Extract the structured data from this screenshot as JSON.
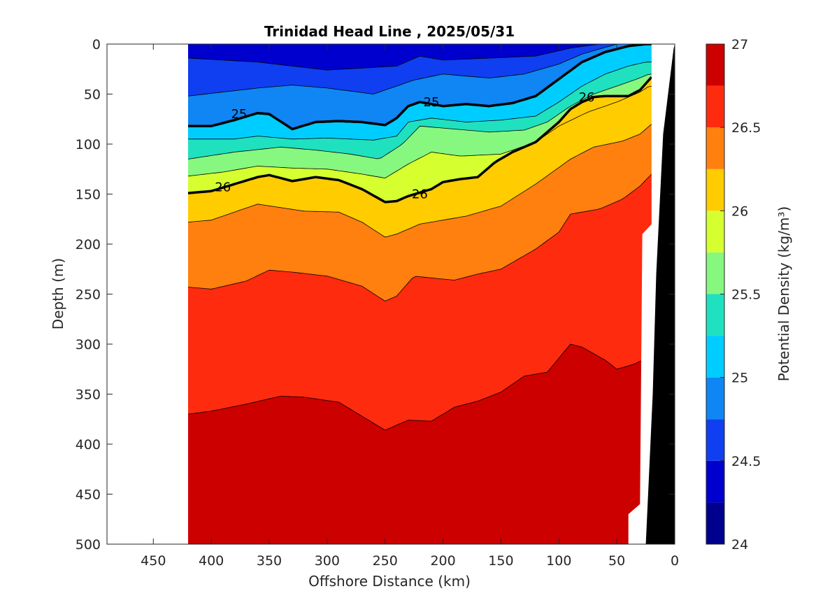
{
  "chart_data": {
    "type": "contour",
    "title": "Trinidad Head Line , 2025/05/31",
    "xlabel": "Offshore Distance (km)",
    "ylabel": "Depth (m)",
    "colorbar_label": "Potential Density (kg/m³)",
    "xlim": [
      490,
      0
    ],
    "ylim": [
      500,
      0
    ],
    "xticks": [
      450,
      400,
      350,
      300,
      250,
      200,
      150,
      100,
      50,
      0
    ],
    "yticks": [
      0,
      50,
      100,
      150,
      200,
      250,
      300,
      350,
      400,
      450,
      500
    ],
    "colorbar": {
      "range": [
        24,
        27
      ],
      "ticks": [
        27,
        26.5,
        26,
        25.5,
        25,
        24.5,
        24
      ],
      "tick_labels": [
        "27",
        "26.5",
        "26",
        "25.5",
        "25",
        "24.5",
        "24"
      ],
      "levels": [
        24,
        24.25,
        24.5,
        24.75,
        25,
        25.25,
        25.5,
        25.75,
        26,
        26.25,
        26.5,
        26.75,
        27
      ],
      "colors": [
        "#00008f",
        "#0000ce",
        "#0f3ff0",
        "#0f86f3",
        "#00cdff",
        "#1fe1c0",
        "#86f77f",
        "#d6ff2f",
        "#ffcc00",
        "#ff7f0f",
        "#ff2b0f",
        "#cd0000"
      ]
    },
    "data_extent_km": [
      420,
      20
    ],
    "isopycnals": [
      {
        "level": 24.5,
        "x": [
          420,
          360,
          330,
          300,
          270,
          240,
          220,
          200,
          160,
          120,
          90,
          65
        ],
        "depth": [
          14,
          18,
          22,
          26,
          24,
          22,
          12,
          16,
          14,
          12,
          4,
          0
        ]
      },
      {
        "level": 24.75,
        "x": [
          420,
          360,
          330,
          300,
          260,
          225,
          200,
          160,
          130,
          100,
          80,
          50
        ],
        "depth": [
          52,
          44,
          41,
          44,
          50,
          36,
          30,
          34,
          30,
          20,
          10,
          0
        ]
      },
      {
        "level": 25.0,
        "x": [
          420,
          400,
          380,
          360,
          350,
          330,
          310,
          290,
          270,
          250,
          240,
          230,
          220,
          200,
          180,
          160,
          140,
          120,
          100,
          80,
          60,
          40,
          25
        ],
        "depth": [
          82,
          82,
          76,
          69,
          70,
          85,
          78,
          77,
          78,
          81,
          74,
          62,
          58,
          62,
          60,
          62,
          59,
          52,
          35,
          18,
          8,
          2,
          0
        ]
      },
      {
        "level": 25.25,
        "x": [
          420,
          380,
          360,
          330,
          300,
          260,
          240,
          230,
          210,
          180,
          150,
          120,
          100,
          80,
          60,
          40,
          25
        ],
        "depth": [
          95,
          95,
          92,
          95,
          94,
          96,
          92,
          78,
          74,
          78,
          76,
          72,
          58,
          42,
          30,
          22,
          18
        ]
      },
      {
        "level": 25.5,
        "x": [
          420,
          380,
          340,
          310,
          280,
          255,
          235,
          220,
          190,
          160,
          130,
          110,
          90,
          70,
          50,
          35,
          22
        ],
        "depth": [
          115,
          108,
          103,
          106,
          110,
          115,
          100,
          82,
          85,
          88,
          86,
          78,
          62,
          50,
          42,
          36,
          30
        ]
      },
      {
        "level": 25.75,
        "x": [
          420,
          390,
          360,
          330,
          300,
          270,
          250,
          230,
          210,
          185,
          150,
          120,
          100,
          75,
          50,
          30,
          22
        ],
        "depth": [
          132,
          128,
          122,
          124,
          125,
          130,
          134,
          120,
          108,
          112,
          110,
          98,
          82,
          68,
          58,
          48,
          42
        ]
      },
      {
        "level": 26.0,
        "x": [
          420,
          400,
          380,
          360,
          350,
          330,
          310,
          290,
          270,
          250,
          240,
          230,
          210,
          200,
          185,
          170,
          155,
          140,
          120,
          100,
          90,
          80,
          70,
          60,
          40,
          30,
          20
        ],
        "depth": [
          149,
          147,
          140,
          133,
          131,
          137,
          133,
          136,
          145,
          158,
          157,
          152,
          145,
          138,
          135,
          133,
          118,
          108,
          98,
          78,
          65,
          58,
          53,
          52,
          52,
          46,
          33
        ]
      },
      {
        "level": 26.25,
        "x": [
          420,
          400,
          360,
          320,
          290,
          270,
          250,
          240,
          220,
          180,
          150,
          120,
          90,
          70,
          45,
          30,
          20
        ],
        "depth": [
          178,
          176,
          160,
          167,
          168,
          178,
          193,
          190,
          180,
          172,
          162,
          140,
          115,
          103,
          97,
          90,
          80
        ]
      },
      {
        "level": 26.5,
        "x": [
          420,
          400,
          370,
          350,
          330,
          300,
          270,
          250,
          240,
          225,
          200,
          190,
          170,
          150,
          120,
          100,
          90,
          65,
          45,
          30,
          20
        ],
        "depth": [
          243,
          245,
          237,
          226,
          228,
          232,
          242,
          257,
          252,
          232,
          235,
          236,
          230,
          225,
          205,
          188,
          170,
          165,
          155,
          142,
          130
        ]
      },
      {
        "level": 26.75,
        "x": [
          420,
          400,
          370,
          340,
          320,
          290,
          270,
          250,
          230,
          210,
          190,
          170,
          150,
          130,
          110,
          90,
          80,
          60,
          50,
          35,
          30
        ],
        "depth": [
          370,
          367,
          360,
          352,
          353,
          358,
          372,
          386,
          376,
          377,
          363,
          357,
          348,
          332,
          328,
          300,
          303,
          316,
          325,
          320,
          317
        ]
      }
    ],
    "contour_labels": [
      {
        "text": "25",
        "x": 376,
        "depth": 70
      },
      {
        "text": "25",
        "x": 210,
        "depth": 58
      },
      {
        "text": "26",
        "x": 76,
        "depth": 53
      },
      {
        "text": "26",
        "x": 390,
        "depth": 143
      },
      {
        "text": "26",
        "x": 220,
        "depth": 150
      }
    ]
  }
}
